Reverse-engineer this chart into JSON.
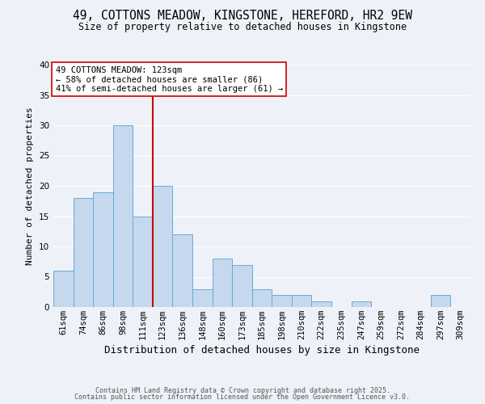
{
  "title": "49, COTTONS MEADOW, KINGSTONE, HEREFORD, HR2 9EW",
  "subtitle": "Size of property relative to detached houses in Kingstone",
  "xlabel": "Distribution of detached houses by size in Kingstone",
  "ylabel": "Number of detached properties",
  "bar_labels": [
    "61sqm",
    "74sqm",
    "86sqm",
    "98sqm",
    "111sqm",
    "123sqm",
    "136sqm",
    "148sqm",
    "160sqm",
    "173sqm",
    "185sqm",
    "198sqm",
    "210sqm",
    "222sqm",
    "235sqm",
    "247sqm",
    "259sqm",
    "272sqm",
    "284sqm",
    "297sqm",
    "309sqm"
  ],
  "bar_values": [
    6,
    18,
    19,
    30,
    15,
    20,
    12,
    3,
    8,
    7,
    3,
    2,
    2,
    1,
    0,
    1,
    0,
    0,
    0,
    2,
    0
  ],
  "bar_color": "#c5d8ee",
  "bar_edge_color": "#6aaad4",
  "vline_color": "#cc0000",
  "annotation_text": "49 COTTONS MEADOW: 123sqm\n← 58% of detached houses are smaller (86)\n41% of semi-detached houses are larger (61) →",
  "annotation_box_color": "#ffffff",
  "annotation_box_edge_color": "#cc0000",
  "ylim": [
    0,
    40
  ],
  "yticks": [
    0,
    5,
    10,
    15,
    20,
    25,
    30,
    35,
    40
  ],
  "bg_color": "#eef2f8",
  "grid_color": "#ffffff",
  "footer_line1": "Contains HM Land Registry data © Crown copyright and database right 2025.",
  "footer_line2": "Contains public sector information licensed under the Open Government Licence v3.0.",
  "title_fontsize": 10.5,
  "subtitle_fontsize": 8.5,
  "xlabel_fontsize": 9,
  "ylabel_fontsize": 8,
  "tick_fontsize": 7.5,
  "annotation_fontsize": 7.5,
  "footer_fontsize": 6.0
}
